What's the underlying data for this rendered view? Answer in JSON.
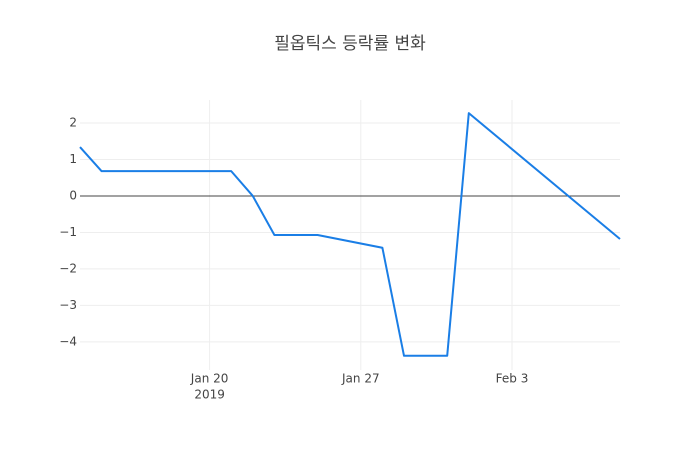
{
  "chart_data": {
    "type": "line",
    "title": "필옵틱스 등락률 변화",
    "x": [
      "2019-01-14",
      "2019-01-15",
      "2019-01-21",
      "2019-01-22",
      "2019-01-23",
      "2019-01-25",
      "2019-01-28",
      "2019-01-29",
      "2019-01-31",
      "2019-02-01",
      "2019-02-08"
    ],
    "values": [
      1.34,
      0.68,
      0.68,
      0.0,
      -1.07,
      -1.07,
      -1.42,
      -4.38,
      -4.38,
      2.27,
      -1.18
    ],
    "color": "#1a7ee6",
    "xlim": [
      "2019-01-14",
      "2019-02-08"
    ],
    "xticks": [
      {
        "value": "2019-01-20",
        "label": "Jan 20",
        "sublabel": "2019"
      },
      {
        "value": "2019-01-27",
        "label": "Jan 27"
      },
      {
        "value": "2019-02-03",
        "label": "Feb 3"
      }
    ],
    "ylim": [
      -4.77,
      2.63
    ],
    "yticks": [
      {
        "value": -4,
        "label": "−4"
      },
      {
        "value": -3,
        "label": "−3"
      },
      {
        "value": -2,
        "label": "−2"
      },
      {
        "value": -1,
        "label": "−1"
      },
      0,
      1,
      2
    ],
    "grid": true,
    "zeroline": true
  }
}
